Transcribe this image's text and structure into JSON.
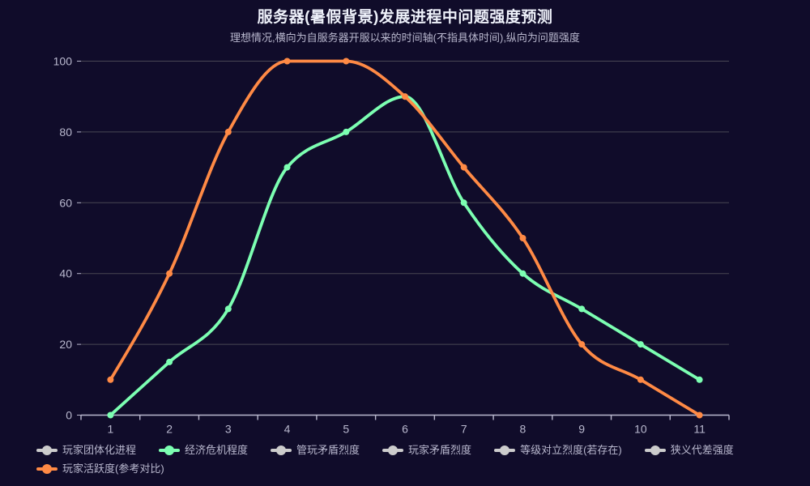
{
  "colors": {
    "background": "#100C2A",
    "title_text": "#EEF1FA",
    "secondary_text": "#B9B8CE",
    "grid_line": "#484753",
    "axis_line": "#B9B8CE",
    "inactive_legend": "#CCCCCC",
    "series_green": "#7CFFB2",
    "series_orange": "#FF8A45"
  },
  "chart_data": {
    "type": "line",
    "smooth": true,
    "grid": true,
    "title": "服务器(暑假背景)发展进程中问题强度预测",
    "subtitle": "理想情况,横向为自服务器开服以来的时间轴(不指具体时间),纵向为问题强度",
    "xlabel": "",
    "ylabel": "",
    "x_categories": [
      "1",
      "2",
      "3",
      "4",
      "5",
      "6",
      "7",
      "8",
      "9",
      "10",
      "11"
    ],
    "ylim": [
      0,
      100
    ],
    "y_ticks": [
      0,
      20,
      40,
      60,
      80,
      100
    ],
    "legend_position": "bottom-left",
    "series": [
      {
        "name": "经济危机程度",
        "color": "#7CFFB2",
        "values": [
          0,
          15,
          30,
          70,
          80,
          90,
          60,
          40,
          30,
          20,
          10
        ]
      },
      {
        "name": "玩家活跃度(参考对比)",
        "color": "#FF8A45",
        "values": [
          10,
          40,
          80,
          100,
          100,
          90,
          70,
          50,
          20,
          10,
          0
        ]
      }
    ],
    "legend": [
      {
        "label": "玩家团体化进程",
        "marker_color": "#CCCCCC",
        "selected": false
      },
      {
        "label": "经济危机程度",
        "marker_color": "#7CFFB2",
        "selected": true
      },
      {
        "label": "管玩矛盾烈度",
        "marker_color": "#CCCCCC",
        "selected": false
      },
      {
        "label": "玩家矛盾烈度",
        "marker_color": "#CCCCCC",
        "selected": false
      },
      {
        "label": "等级对立烈度(若存在)",
        "marker_color": "#CCCCCC",
        "selected": false
      },
      {
        "label": "狭义代差强度",
        "marker_color": "#CCCCCC",
        "selected": false
      },
      {
        "label": "玩家活跃度(参考对比)",
        "marker_color": "#FF8A45",
        "selected": true
      }
    ]
  }
}
